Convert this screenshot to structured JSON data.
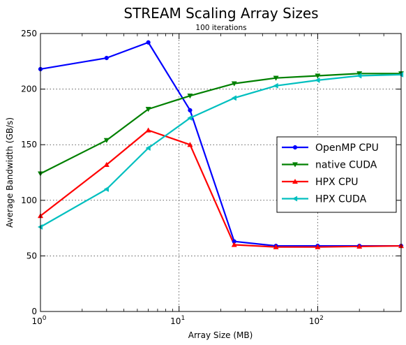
{
  "chart_data": {
    "type": "line",
    "title": "STREAM Scaling Array Sizes",
    "subtitle": "100 iterations",
    "xlabel": "Array Size (MB)",
    "ylabel": "Average Bandwidth (GB/s)",
    "xscale": "log",
    "xlim": [
      1,
      400
    ],
    "ylim": [
      0,
      250
    ],
    "grid": true,
    "legend_position": "center-right",
    "x_ticks": [
      {
        "value": 1,
        "base": "10",
        "exp": "0"
      },
      {
        "value": 10,
        "base": "10",
        "exp": "1"
      },
      {
        "value": 100,
        "base": "10",
        "exp": "2"
      }
    ],
    "y_ticks": [
      "0",
      "50",
      "100",
      "150",
      "200",
      "250"
    ],
    "x": [
      1,
      3,
      6,
      12,
      25,
      50,
      100,
      200,
      400
    ],
    "series": [
      {
        "name": "OpenMP CPU",
        "color": "#0000ff",
        "marker": "circle",
        "values": [
          218,
          228,
          242,
          181,
          63,
          59,
          59,
          59,
          59
        ]
      },
      {
        "name": "native CUDA",
        "color": "#008000",
        "marker": "triangle-down",
        "values": [
          124,
          154,
          182,
          194,
          205,
          210,
          212,
          214,
          214
        ]
      },
      {
        "name": "HPX CPU",
        "color": "#ff0000",
        "marker": "triangle-up",
        "values": [
          86,
          132,
          163,
          150,
          60,
          58,
          58,
          58.5,
          59
        ]
      },
      {
        "name": "HPX CUDA",
        "color": "#00bfbf",
        "marker": "triangle-left",
        "values": [
          76,
          110,
          147,
          174,
          192,
          203,
          208,
          212,
          213
        ]
      }
    ]
  }
}
